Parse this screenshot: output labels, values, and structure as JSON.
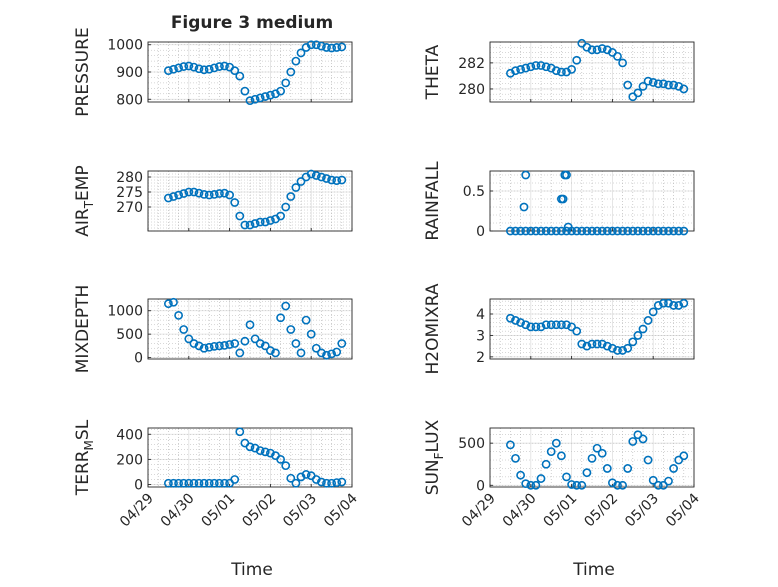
{
  "figure": {
    "title": "Figure 3 medium",
    "xlabel": "Time",
    "x_ticks": [
      "04/29",
      "04/30",
      "05/01",
      "05/02",
      "05/03",
      "05/04"
    ]
  },
  "colors": {
    "marker": "#0072BD",
    "axis": "#262626",
    "grid": "#b0b0b0"
  },
  "chart_data": [
    {
      "type": "scatter",
      "ylabel": "PRESSURE",
      "ylim": [
        790,
        1010
      ],
      "yticks": [
        800,
        900,
        1000
      ],
      "x_range": [
        "04/29",
        "05/04"
      ],
      "grid": true,
      "x": [
        "04/29 12:00",
        "04/29 15:00",
        "04/29 18:00",
        "04/29 21:00",
        "04/30 00:00",
        "04/30 03:00",
        "04/30 06:00",
        "04/30 09:00",
        "04/30 12:00",
        "04/30 15:00",
        "04/30 18:00",
        "04/30 21:00",
        "05/01 00:00",
        "05/01 03:00",
        "05/01 06:00",
        "05/01 09:00",
        "05/01 12:00",
        "05/01 15:00",
        "05/01 18:00",
        "05/01 21:00",
        "05/02 00:00",
        "05/02 03:00",
        "05/02 06:00",
        "05/02 09:00",
        "05/02 12:00",
        "05/02 15:00",
        "05/02 18:00",
        "05/02 21:00",
        "05/03 00:00",
        "05/03 03:00",
        "05/03 06:00",
        "05/03 09:00",
        "05/03 12:00",
        "05/03 15:00",
        "05/03 18:00"
      ],
      "y": [
        905,
        910,
        915,
        920,
        922,
        918,
        912,
        908,
        910,
        915,
        920,
        922,
        918,
        905,
        885,
        830,
        795,
        800,
        805,
        810,
        815,
        820,
        830,
        860,
        900,
        940,
        970,
        990,
        1000,
        1000,
        995,
        990,
        988,
        990,
        992
      ]
    },
    {
      "type": "scatter",
      "ylabel": "THETA",
      "ylim": [
        279,
        283.6
      ],
      "yticks": [
        280,
        282
      ],
      "x_range": [
        "04/29",
        "05/04"
      ],
      "grid": true,
      "x": [
        "04/29 12:00",
        "04/29 15:00",
        "04/29 18:00",
        "04/29 21:00",
        "04/30 00:00",
        "04/30 03:00",
        "04/30 06:00",
        "04/30 09:00",
        "04/30 12:00",
        "04/30 15:00",
        "04/30 18:00",
        "04/30 21:00",
        "05/01 00:00",
        "05/01 03:00",
        "05/01 06:00",
        "05/01 09:00",
        "05/01 12:00",
        "05/01 15:00",
        "05/01 18:00",
        "05/01 21:00",
        "05/02 00:00",
        "05/02 03:00",
        "05/02 06:00",
        "05/02 09:00",
        "05/02 12:00",
        "05/02 15:00",
        "05/02 18:00",
        "05/02 21:00",
        "05/03 00:00",
        "05/03 03:00",
        "05/03 06:00",
        "05/03 09:00",
        "05/03 12:00",
        "05/03 15:00",
        "05/03 18:00"
      ],
      "y": [
        281.2,
        281.4,
        281.5,
        281.6,
        281.7,
        281.8,
        281.8,
        281.7,
        281.6,
        281.4,
        281.3,
        281.3,
        281.5,
        282.2,
        283.5,
        283.2,
        283.0,
        283.0,
        283.1,
        283.0,
        282.8,
        282.5,
        282.0,
        280.3,
        279.4,
        279.7,
        280.2,
        280.6,
        280.5,
        280.4,
        280.4,
        280.3,
        280.3,
        280.2,
        280.0
      ]
    },
    {
      "type": "scatter",
      "ylabel": "AIR_TEMP",
      "ylim": [
        262,
        282
      ],
      "yticks": [
        270,
        275,
        280
      ],
      "x_range": [
        "04/29",
        "05/04"
      ],
      "grid": true,
      "x": [
        "04/29 12:00",
        "04/29 15:00",
        "04/29 18:00",
        "04/29 21:00",
        "04/30 00:00",
        "04/30 03:00",
        "04/30 06:00",
        "04/30 09:00",
        "04/30 12:00",
        "04/30 15:00",
        "04/30 18:00",
        "04/30 21:00",
        "05/01 00:00",
        "05/01 03:00",
        "05/01 06:00",
        "05/01 09:00",
        "05/01 12:00",
        "05/01 15:00",
        "05/01 18:00",
        "05/01 21:00",
        "05/02 00:00",
        "05/02 03:00",
        "05/02 06:00",
        "05/02 09:00",
        "05/02 12:00",
        "05/02 15:00",
        "05/02 18:00",
        "05/02 21:00",
        "05/03 00:00",
        "05/03 03:00",
        "05/03 06:00",
        "05/03 09:00",
        "05/03 12:00",
        "05/03 15:00",
        "05/03 18:00"
      ],
      "y": [
        273,
        273.5,
        274,
        274.5,
        275,
        275,
        274.6,
        274.2,
        274,
        274.2,
        274.5,
        274.6,
        274,
        271.5,
        267,
        264,
        264,
        264.5,
        265,
        265,
        265.5,
        266,
        267,
        270,
        273.5,
        276.5,
        278.5,
        280,
        281,
        280.5,
        280,
        279.5,
        279,
        278.8,
        279
      ]
    },
    {
      "type": "scatter",
      "ylabel": "RAINFALL",
      "ylim": [
        0,
        0.75
      ],
      "yticks": [
        0,
        0.5
      ],
      "x_range": [
        "04/29",
        "05/04"
      ],
      "grid": true,
      "x": [
        "04/29 12:00",
        "04/29 15:00",
        "04/29 18:00",
        "04/29 21:00",
        "04/30 00:00",
        "04/30 03:00",
        "04/30 06:00",
        "04/30 09:00",
        "04/30 12:00",
        "04/30 15:00",
        "04/30 18:00",
        "04/30 21:00",
        "05/01 00:00",
        "05/01 03:00",
        "05/01 06:00",
        "05/01 09:00",
        "05/01 12:00",
        "05/01 15:00",
        "05/01 18:00",
        "05/01 21:00",
        "05/02 00:00",
        "05/02 03:00",
        "05/02 06:00",
        "05/02 09:00",
        "05/02 12:00",
        "05/02 15:00",
        "05/02 18:00",
        "05/02 21:00",
        "05/03 00:00",
        "05/03 03:00",
        "05/03 06:00",
        "05/03 09:00",
        "05/03 12:00",
        "05/03 15:00",
        "05/03 18:00",
        "04/29 20:00",
        "04/29 21:00",
        "04/30 18:00",
        "04/30 19:00",
        "04/30 20:00",
        "04/30 21:00",
        "04/30 22:00"
      ],
      "y": [
        0,
        0,
        0,
        0,
        0,
        0,
        0,
        0,
        0,
        0,
        0,
        0,
        0,
        0,
        0,
        0,
        0,
        0,
        0,
        0,
        0,
        0,
        0,
        0,
        0,
        0,
        0,
        0,
        0,
        0,
        0,
        0,
        0,
        0,
        0,
        0.3,
        0.7,
        0.4,
        0.4,
        0.7,
        0.7,
        0.05
      ]
    },
    {
      "type": "scatter",
      "ylabel": "MIXDEPTH",
      "ylim": [
        -30,
        1250
      ],
      "yticks": [
        0,
        500,
        1000
      ],
      "x_range": [
        "04/29",
        "05/04"
      ],
      "grid": true,
      "x": [
        "04/29 12:00",
        "04/29 15:00",
        "04/29 18:00",
        "04/29 21:00",
        "04/30 00:00",
        "04/30 03:00",
        "04/30 06:00",
        "04/30 09:00",
        "04/30 12:00",
        "04/30 15:00",
        "04/30 18:00",
        "04/30 21:00",
        "05/01 00:00",
        "05/01 03:00",
        "05/01 06:00",
        "05/01 09:00",
        "05/01 12:00",
        "05/01 15:00",
        "05/01 18:00",
        "05/01 21:00",
        "05/02 00:00",
        "05/02 03:00",
        "05/02 06:00",
        "05/02 09:00",
        "05/02 12:00",
        "05/02 15:00",
        "05/02 18:00",
        "05/02 21:00",
        "05/03 00:00",
        "05/03 03:00",
        "05/03 06:00",
        "05/03 09:00",
        "05/03 12:00",
        "05/03 15:00",
        "05/03 18:00"
      ],
      "y": [
        1150,
        1180,
        900,
        600,
        400,
        300,
        250,
        200,
        220,
        240,
        250,
        260,
        280,
        300,
        100,
        350,
        700,
        400,
        300,
        250,
        150,
        100,
        850,
        1100,
        600,
        300,
        100,
        800,
        500,
        200,
        100,
        50,
        80,
        120,
        300
      ]
    },
    {
      "type": "scatter",
      "ylabel": "H2OMIXRA",
      "ylim": [
        1.9,
        4.7
      ],
      "yticks": [
        2,
        3,
        4
      ],
      "x_range": [
        "04/29",
        "05/04"
      ],
      "grid": true,
      "x": [
        "04/29 12:00",
        "04/29 15:00",
        "04/29 18:00",
        "04/29 21:00",
        "04/30 00:00",
        "04/30 03:00",
        "04/30 06:00",
        "04/30 09:00",
        "04/30 12:00",
        "04/30 15:00",
        "04/30 18:00",
        "04/30 21:00",
        "05/01 00:00",
        "05/01 03:00",
        "05/01 06:00",
        "05/01 09:00",
        "05/01 12:00",
        "05/01 15:00",
        "05/01 18:00",
        "05/01 21:00",
        "05/02 00:00",
        "05/02 03:00",
        "05/02 06:00",
        "05/02 09:00",
        "05/02 12:00",
        "05/02 15:00",
        "05/02 18:00",
        "05/02 21:00",
        "05/03 00:00",
        "05/03 03:00",
        "05/03 06:00",
        "05/03 09:00",
        "05/03 12:00",
        "05/03 15:00",
        "05/03 18:00"
      ],
      "y": [
        3.8,
        3.7,
        3.6,
        3.5,
        3.4,
        3.4,
        3.4,
        3.5,
        3.5,
        3.5,
        3.5,
        3.5,
        3.4,
        3.2,
        2.6,
        2.5,
        2.6,
        2.6,
        2.6,
        2.5,
        2.4,
        2.3,
        2.3,
        2.4,
        2.7,
        3.0,
        3.3,
        3.7,
        4.1,
        4.4,
        4.5,
        4.5,
        4.4,
        4.4,
        4.5
      ]
    },
    {
      "type": "scatter",
      "ylabel": "TERR_MSL",
      "ylim": [
        -20,
        450
      ],
      "yticks": [
        0,
        200,
        400
      ],
      "x_range": [
        "04/29",
        "05/04"
      ],
      "grid": true,
      "x": [
        "04/29 12:00",
        "04/29 15:00",
        "04/29 18:00",
        "04/29 21:00",
        "04/30 00:00",
        "04/30 03:00",
        "04/30 06:00",
        "04/30 09:00",
        "04/30 12:00",
        "04/30 15:00",
        "04/30 18:00",
        "04/30 21:00",
        "05/01 00:00",
        "05/01 03:00",
        "05/01 06:00",
        "05/01 09:00",
        "05/01 12:00",
        "05/01 15:00",
        "05/01 18:00",
        "05/01 21:00",
        "05/02 00:00",
        "05/02 03:00",
        "05/02 06:00",
        "05/02 09:00",
        "05/02 12:00",
        "05/02 15:00",
        "05/02 18:00",
        "05/02 21:00",
        "05/03 00:00",
        "05/03 03:00",
        "05/03 06:00",
        "05/03 09:00",
        "05/03 12:00",
        "05/03 15:00",
        "05/03 18:00"
      ],
      "y": [
        10,
        10,
        10,
        10,
        10,
        10,
        10,
        10,
        10,
        10,
        10,
        10,
        10,
        40,
        420,
        330,
        300,
        290,
        270,
        260,
        250,
        230,
        200,
        150,
        50,
        10,
        60,
        80,
        70,
        40,
        20,
        10,
        10,
        15,
        20
      ]
    },
    {
      "type": "scatter",
      "ylabel": "SUN_FLUX",
      "ylim": [
        -20,
        680
      ],
      "yticks": [
        0,
        500
      ],
      "x_range": [
        "04/29",
        "05/04"
      ],
      "grid": true,
      "x": [
        "04/29 12:00",
        "04/29 15:00",
        "04/29 18:00",
        "04/29 21:00",
        "04/30 00:00",
        "04/30 03:00",
        "04/30 06:00",
        "04/30 09:00",
        "04/30 12:00",
        "04/30 15:00",
        "04/30 18:00",
        "04/30 21:00",
        "05/01 00:00",
        "05/01 03:00",
        "05/01 06:00",
        "05/01 09:00",
        "05/01 12:00",
        "05/01 15:00",
        "05/01 18:00",
        "05/01 21:00",
        "05/02 00:00",
        "05/02 03:00",
        "05/02 06:00",
        "05/02 09:00",
        "05/02 12:00",
        "05/02 15:00",
        "05/02 18:00",
        "05/02 21:00",
        "05/03 00:00",
        "05/03 03:00",
        "05/03 06:00",
        "05/03 09:00",
        "05/03 12:00",
        "05/03 15:00",
        "05/03 18:00"
      ],
      "y": [
        480,
        320,
        120,
        20,
        0,
        0,
        80,
        250,
        400,
        500,
        350,
        100,
        10,
        0,
        0,
        150,
        320,
        440,
        380,
        200,
        30,
        0,
        0,
        200,
        520,
        600,
        550,
        300,
        60,
        0,
        0,
        50,
        200,
        300,
        350
      ]
    }
  ]
}
